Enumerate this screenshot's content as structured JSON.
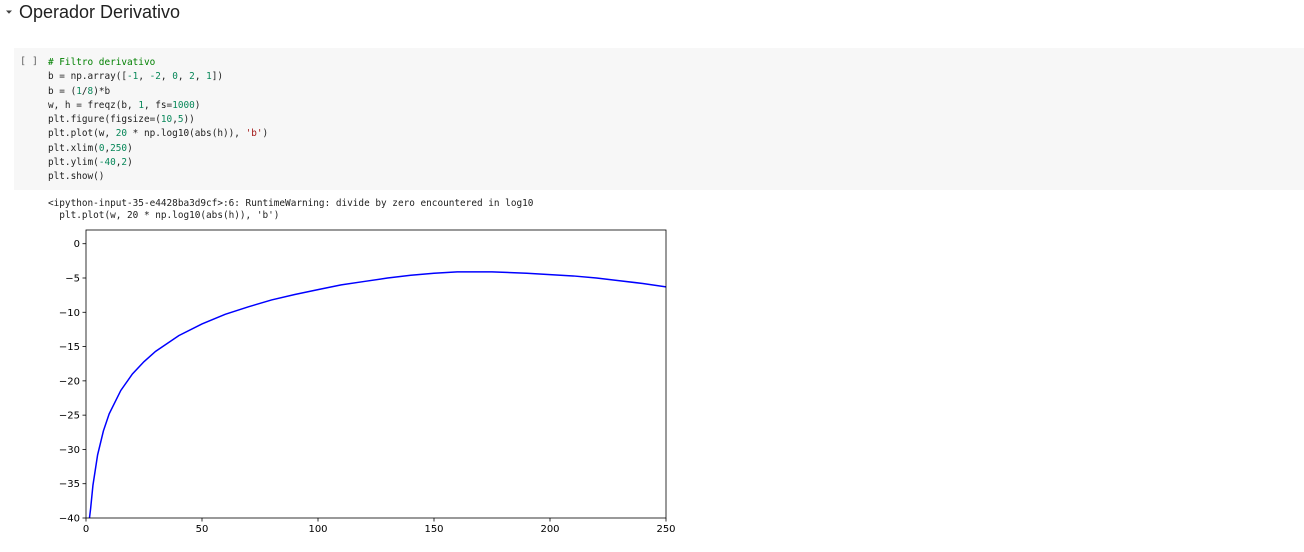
{
  "section": {
    "title": "Operador Derivativo",
    "collapse_icon": "caret-down-icon"
  },
  "cell": {
    "run_label": "[ ]",
    "code_lines": [
      [
        {
          "t": "# Filtro derivativo",
          "c": "com"
        }
      ],
      [
        {
          "t": "b = np.array(["
        },
        {
          "t": "-1",
          "c": "num"
        },
        {
          "t": ", "
        },
        {
          "t": "-2",
          "c": "num"
        },
        {
          "t": ", "
        },
        {
          "t": "0",
          "c": "num"
        },
        {
          "t": ", "
        },
        {
          "t": "2",
          "c": "num"
        },
        {
          "t": ", "
        },
        {
          "t": "1",
          "c": "num"
        },
        {
          "t": "])"
        }
      ],
      [
        {
          "t": "b = ("
        },
        {
          "t": "1",
          "c": "num"
        },
        {
          "t": "/"
        },
        {
          "t": "8",
          "c": "num"
        },
        {
          "t": ")*b"
        }
      ],
      [
        {
          "t": "w, h = freqz(b, "
        },
        {
          "t": "1",
          "c": "num"
        },
        {
          "t": ", fs="
        },
        {
          "t": "1000",
          "c": "num"
        },
        {
          "t": ")"
        }
      ],
      [
        {
          "t": "plt.figure(figsize=("
        },
        {
          "t": "10",
          "c": "num"
        },
        {
          "t": ","
        },
        {
          "t": "5",
          "c": "num"
        },
        {
          "t": "))"
        }
      ],
      [
        {
          "t": "plt.plot(w, "
        },
        {
          "t": "20",
          "c": "num"
        },
        {
          "t": " * np.log10(abs(h)), "
        },
        {
          "t": "'b'",
          "c": "str"
        },
        {
          "t": ")"
        }
      ],
      [
        {
          "t": "plt.xlim("
        },
        {
          "t": "0",
          "c": "num"
        },
        {
          "t": ","
        },
        {
          "t": "250",
          "c": "num"
        },
        {
          "t": ")"
        }
      ],
      [
        {
          "t": "plt.ylim("
        },
        {
          "t": "-40",
          "c": "num"
        },
        {
          "t": ","
        },
        {
          "t": "2",
          "c": "num"
        },
        {
          "t": ")"
        }
      ],
      [
        {
          "t": "plt.show()"
        }
      ]
    ]
  },
  "output": {
    "warning_line1": "<ipython-input-35-e4428ba3d9cf>:6: RuntimeWarning: divide by zero encountered in log10",
    "warning_line2": "  plt.plot(w, 20 * np.log10(abs(h)), 'b')"
  },
  "chart_data": {
    "type": "line",
    "title": "",
    "xlabel": "",
    "ylabel": "",
    "xlim": [
      0,
      250
    ],
    "ylim": [
      -40,
      2
    ],
    "xticks": [
      0,
      50,
      100,
      150,
      200,
      250
    ],
    "yticks": [
      0,
      -5,
      -10,
      -15,
      -20,
      -25,
      -30,
      -35,
      -40
    ],
    "grid": false,
    "series": [
      {
        "color": "#0000ff",
        "x": [
          1.0,
          2,
          3,
          5,
          7.5,
          10,
          15,
          20,
          25,
          30,
          40,
          50,
          60,
          70,
          80,
          90,
          100,
          110,
          120,
          130,
          140,
          150,
          160,
          166.7,
          175,
          190,
          200,
          210,
          220,
          230,
          240,
          250
        ],
        "y": [
          -41.4,
          -38.6,
          -35.2,
          -30.8,
          -27.3,
          -24.8,
          -21.4,
          -19.0,
          -17.2,
          -15.7,
          -13.4,
          -11.7,
          -10.3,
          -9.2,
          -8.2,
          -7.4,
          -6.7,
          -6.0,
          -5.5,
          -5.0,
          -4.6,
          -4.3,
          -4.1,
          -4.1,
          -4.1,
          -4.3,
          -4.5,
          -4.7,
          -5.0,
          -5.4,
          -5.8,
          -6.3
        ]
      }
    ]
  }
}
